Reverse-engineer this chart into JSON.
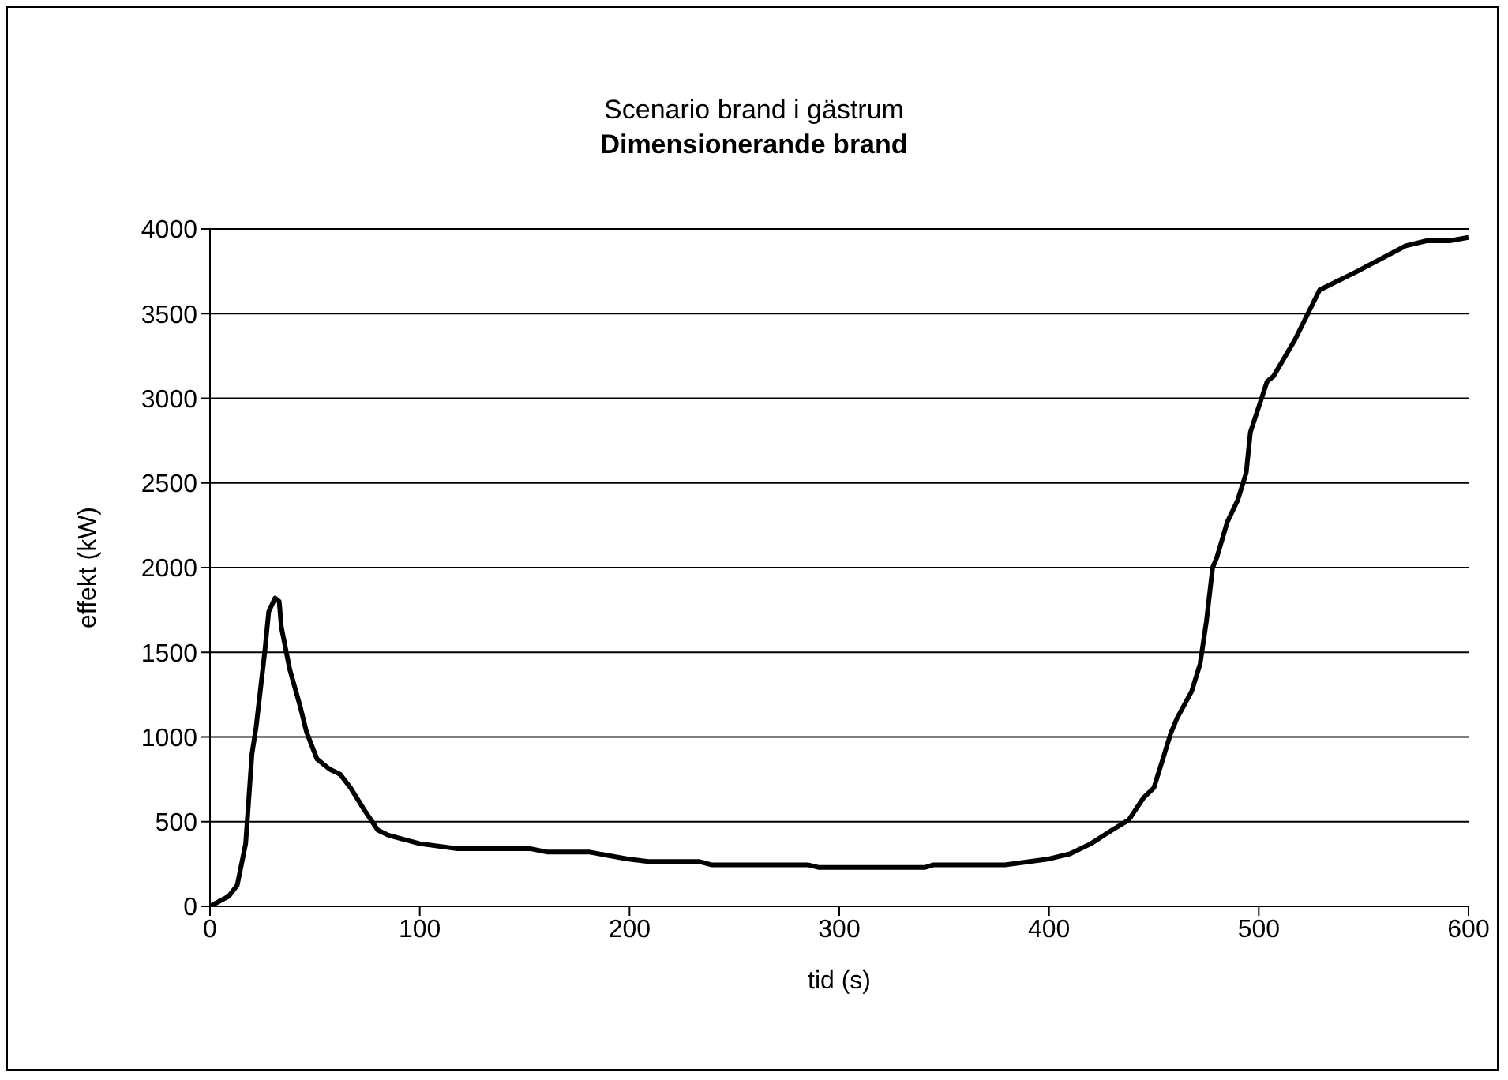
{
  "chart_data": {
    "type": "line",
    "title": "Scenario brand i gästrum",
    "subtitle": "Dimensionerande brand",
    "xlabel": "tid (s)",
    "ylabel": "effekt (kW)",
    "xlim": [
      0,
      600
    ],
    "xticks": [
      0,
      100,
      200,
      300,
      400,
      500,
      600
    ],
    "ylim": [
      0,
      4000
    ],
    "yticks": [
      0,
      500,
      1000,
      1500,
      2000,
      2500,
      3000,
      3500,
      4000
    ],
    "grid": "y",
    "marker": "none",
    "line_style": "solid",
    "series": [
      {
        "color": "#000000",
        "x": [
          0,
          9,
          13,
          17,
          20,
          22,
          26,
          28,
          31,
          33,
          34,
          38,
          43,
          46,
          51,
          57,
          62,
          67,
          73,
          80,
          85,
          100,
          118,
          153,
          161,
          181,
          199,
          209,
          216,
          233,
          239,
          285,
          290,
          341,
          345,
          379,
          400,
          410,
          420,
          430,
          438,
          445,
          450,
          454,
          458,
          461,
          468,
          472,
          475,
          478,
          480,
          485,
          490,
          494,
          496,
          504,
          507,
          517,
          529,
          547,
          570,
          580,
          591,
          600
        ],
        "values": [
          0,
          60,
          125,
          370,
          900,
          1060,
          1490,
          1740,
          1820,
          1800,
          1650,
          1400,
          1180,
          1030,
          870,
          810,
          780,
          700,
          580,
          450,
          420,
          370,
          340,
          340,
          320,
          320,
          280,
          265,
          265,
          265,
          245,
          245,
          230,
          230,
          245,
          245,
          280,
          310,
          370,
          450,
          510,
          640,
          700,
          860,
          1020,
          1110,
          1270,
          1430,
          1680,
          2000,
          2060,
          2270,
          2400,
          2560,
          2800,
          3100,
          3130,
          3340,
          3640,
          3750,
          3900,
          3930,
          3930,
          3950
        ]
      }
    ]
  }
}
